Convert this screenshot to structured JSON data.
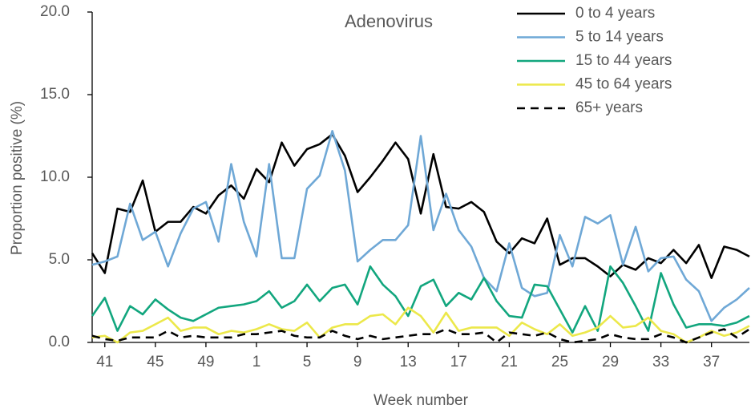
{
  "chart_data": {
    "type": "line",
    "title": "Adenovirus",
    "x_label": "Week number",
    "y_label": "Proportion positive (%)",
    "categories": [
      null,
      "41",
      null,
      null,
      null,
      "45",
      null,
      null,
      null,
      "49",
      null,
      null,
      null,
      "1",
      null,
      null,
      null,
      "5",
      null,
      null,
      null,
      "9",
      null,
      null,
      null,
      "13",
      null,
      null,
      null,
      "17",
      null,
      null,
      null,
      "21",
      null,
      null,
      null,
      "25",
      null,
      null,
      null,
      "29",
      null,
      null,
      null,
      "33",
      null,
      null,
      null,
      "37",
      null,
      null,
      null
    ],
    "ylim": [
      0,
      20
    ],
    "yticks": [
      {
        "value": 0,
        "label": "0.0"
      },
      {
        "value": 5,
        "label": "5.0"
      },
      {
        "value": 10,
        "label": "10.0"
      },
      {
        "value": 15,
        "label": "15.0"
      },
      {
        "value": 20,
        "label": "20.0"
      }
    ],
    "legend": "top-right",
    "series": [
      {
        "name": "0 to 4 years",
        "color": "#000000",
        "dashed": false,
        "values": [
          5.4,
          4.2,
          8.1,
          7.9,
          9.8,
          6.7,
          7.3,
          7.3,
          8.2,
          7.8,
          8.9,
          9.5,
          8.7,
          10.5,
          9.7,
          12.1,
          10.7,
          11.7,
          12.0,
          12.6,
          11.3,
          9.1,
          10.0,
          11.0,
          12.1,
          11.1,
          7.8,
          11.4,
          8.2,
          8.1,
          8.5,
          7.9,
          6.1,
          5.4,
          6.3,
          6.0,
          7.5,
          4.7,
          5.1,
          5.1,
          4.6,
          4.0,
          4.7,
          4.4,
          5.1,
          4.8,
          5.6,
          4.8,
          5.9,
          3.9,
          5.8,
          5.6,
          5.2
        ]
      },
      {
        "name": "5 to 14 years",
        "color": "#6fa8d6",
        "dashed": false,
        "values": [
          4.7,
          4.9,
          5.2,
          8.4,
          6.2,
          6.7,
          4.6,
          6.6,
          8.1,
          8.5,
          6.1,
          10.8,
          7.3,
          5.2,
          10.8,
          5.1,
          5.1,
          9.3,
          10.1,
          12.8,
          10.4,
          4.9,
          5.6,
          6.2,
          6.2,
          7.1,
          12.5,
          6.8,
          9.0,
          6.8,
          5.8,
          3.9,
          3.1,
          6.0,
          3.3,
          2.8,
          3.0,
          6.5,
          4.6,
          7.6,
          7.2,
          7.7,
          4.7,
          7.0,
          4.3,
          5.1,
          5.2,
          3.8,
          3.1,
          1.3,
          2.1,
          2.6,
          3.3
        ]
      },
      {
        "name": "15 to 44 years",
        "color": "#12a67e",
        "dashed": false,
        "values": [
          1.6,
          2.7,
          0.7,
          2.2,
          1.7,
          2.6,
          2.0,
          1.5,
          1.3,
          1.7,
          2.1,
          2.2,
          2.3,
          2.5,
          3.1,
          2.1,
          2.5,
          3.5,
          2.5,
          3.3,
          3.5,
          2.3,
          4.6,
          3.5,
          2.8,
          1.6,
          3.4,
          3.8,
          2.2,
          3.0,
          2.6,
          3.9,
          2.5,
          1.6,
          1.5,
          3.5,
          3.4,
          2.0,
          0.6,
          2.2,
          0.7,
          4.6,
          3.6,
          2.2,
          0.7,
          4.2,
          2.3,
          0.9,
          1.1,
          1.1,
          1.0,
          1.2,
          1.6
        ]
      },
      {
        "name": "45 to 64 years",
        "color": "#ece84a",
        "dashed": false,
        "values": [
          0.3,
          0.4,
          0.0,
          0.6,
          0.7,
          1.1,
          1.5,
          0.7,
          0.9,
          0.9,
          0.5,
          0.7,
          0.6,
          0.8,
          1.1,
          0.8,
          0.7,
          1.2,
          0.3,
          0.9,
          1.1,
          1.1,
          1.6,
          1.7,
          1.1,
          2.1,
          1.6,
          0.6,
          1.8,
          0.7,
          0.9,
          0.9,
          0.9,
          0.4,
          1.2,
          0.8,
          0.5,
          1.1,
          0.4,
          0.6,
          0.9,
          1.6,
          0.9,
          1.0,
          1.5,
          0.7,
          0.5,
          0.0,
          0.3,
          0.7,
          0.4,
          0.6,
          1.0
        ]
      },
      {
        "name": "65+ years",
        "color": "#000000",
        "dashed": true,
        "values": [
          0.4,
          0.2,
          0.1,
          0.3,
          0.3,
          0.3,
          0.7,
          0.3,
          0.4,
          0.3,
          0.3,
          0.3,
          0.5,
          0.5,
          0.6,
          0.7,
          0.4,
          0.3,
          0.3,
          0.7,
          0.4,
          0.2,
          0.4,
          0.2,
          0.3,
          0.4,
          0.5,
          0.5,
          0.8,
          0.5,
          0.5,
          0.6,
          0.0,
          0.6,
          0.5,
          0.4,
          0.6,
          0.2,
          0.0,
          0.1,
          0.2,
          0.5,
          0.3,
          0.2,
          0.2,
          0.5,
          0.3,
          0.0,
          0.3,
          0.6,
          0.8,
          0.3,
          0.8
        ]
      }
    ]
  }
}
